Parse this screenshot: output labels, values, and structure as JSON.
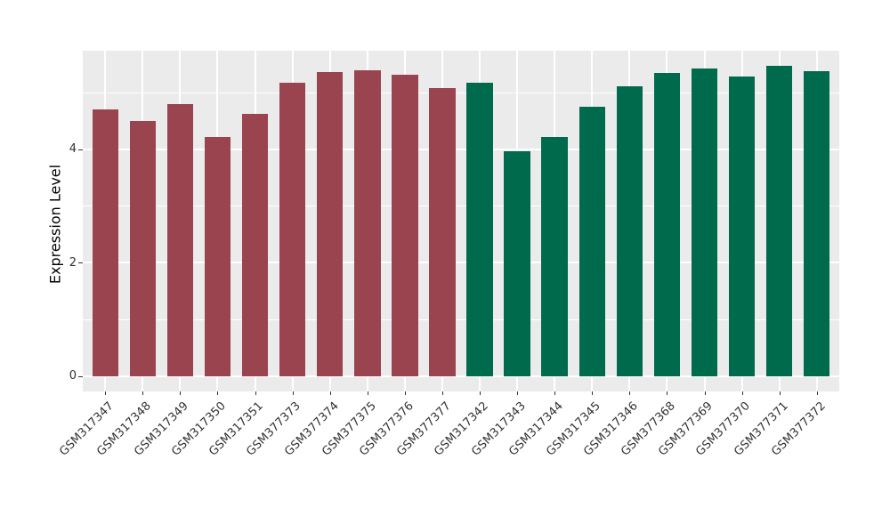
{
  "chart_data": {
    "type": "bar",
    "title": "",
    "xlabel": "",
    "ylabel": "Expression Level",
    "categories": [
      "GSM317347",
      "GSM317348",
      "GSM317349",
      "GSM317350",
      "GSM317351",
      "GSM377373",
      "GSM377374",
      "GSM377375",
      "GSM377376",
      "GSM377377",
      "GSM317342",
      "GSM317343",
      "GSM317344",
      "GSM317345",
      "GSM317346",
      "GSM377368",
      "GSM377369",
      "GSM377370",
      "GSM377371",
      "GSM377372"
    ],
    "values": [
      4.71,
      4.5,
      4.8,
      4.22,
      4.62,
      5.18,
      5.36,
      5.4,
      5.32,
      5.08,
      5.17,
      3.97,
      4.22,
      4.75,
      5.11,
      5.35,
      5.43,
      5.29,
      5.47,
      5.38
    ],
    "bar_colors": [
      "#9A4450",
      "#9A4450",
      "#9A4450",
      "#9A4450",
      "#9A4450",
      "#9A4450",
      "#9A4450",
      "#9A4450",
      "#9A4450",
      "#9A4450",
      "#006A4C",
      "#006A4C",
      "#006A4C",
      "#006A4C",
      "#006A4C",
      "#006A4C",
      "#006A4C",
      "#006A4C",
      "#006A4C",
      "#006A4C"
    ],
    "group_colors": {
      "left_group": "#9A4450",
      "right_group": "#006A4C"
    },
    "ylim": [
      -0.27,
      5.74
    ],
    "yticks_major": [
      0,
      2,
      4
    ],
    "yticks_minor": [
      1,
      3,
      5
    ],
    "grid": "on",
    "legend_position": "none",
    "panel_background": "#EBEBEB",
    "gridline_color": "#FFFFFF",
    "axis_text_color": "#333333",
    "axis_title_color": "#000000",
    "bar_width_fraction": 0.7
  }
}
